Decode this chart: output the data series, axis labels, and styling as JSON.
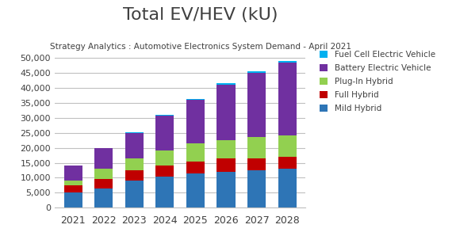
{
  "years": [
    2021,
    2022,
    2023,
    2024,
    2025,
    2026,
    2027,
    2028
  ],
  "mild_hybrid": [
    5000,
    6500,
    9000,
    10500,
    11500,
    12000,
    12500,
    13000
  ],
  "full_hybrid": [
    2500,
    3000,
    3500,
    3500,
    4000,
    4500,
    4000,
    4000
  ],
  "plugin_hybrid": [
    1500,
    3500,
    4000,
    5000,
    6000,
    6000,
    7000,
    7000
  ],
  "bev": [
    5000,
    6800,
    8500,
    11800,
    14500,
    18500,
    21500,
    24500
  ],
  "fcev": [
    100,
    200,
    300,
    300,
    400,
    500,
    500,
    500
  ],
  "colors": {
    "mild_hybrid": "#2E75B6",
    "full_hybrid": "#C00000",
    "plugin_hybrid": "#92D050",
    "bev": "#7030A0",
    "fcev": "#00B0F0"
  },
  "labels": {
    "mild_hybrid": "Mild Hybrid",
    "full_hybrid": "Full Hybrid",
    "plugin_hybrid": "Plug-In Hybrid",
    "bev": "Battery Electric Vehicle",
    "fcev": "Fuel Cell Electric Vehicle"
  },
  "title": "Total EV/HEV (kU)",
  "subtitle": "Strategy Analytics : Automotive Electronics System Demand - April 2021",
  "ylim": [
    0,
    52000
  ],
  "yticks": [
    0,
    5000,
    10000,
    15000,
    20000,
    25000,
    30000,
    35000,
    40000,
    45000,
    50000
  ],
  "background_color": "#FFFFFF",
  "grid_color": "#C0C0C0"
}
